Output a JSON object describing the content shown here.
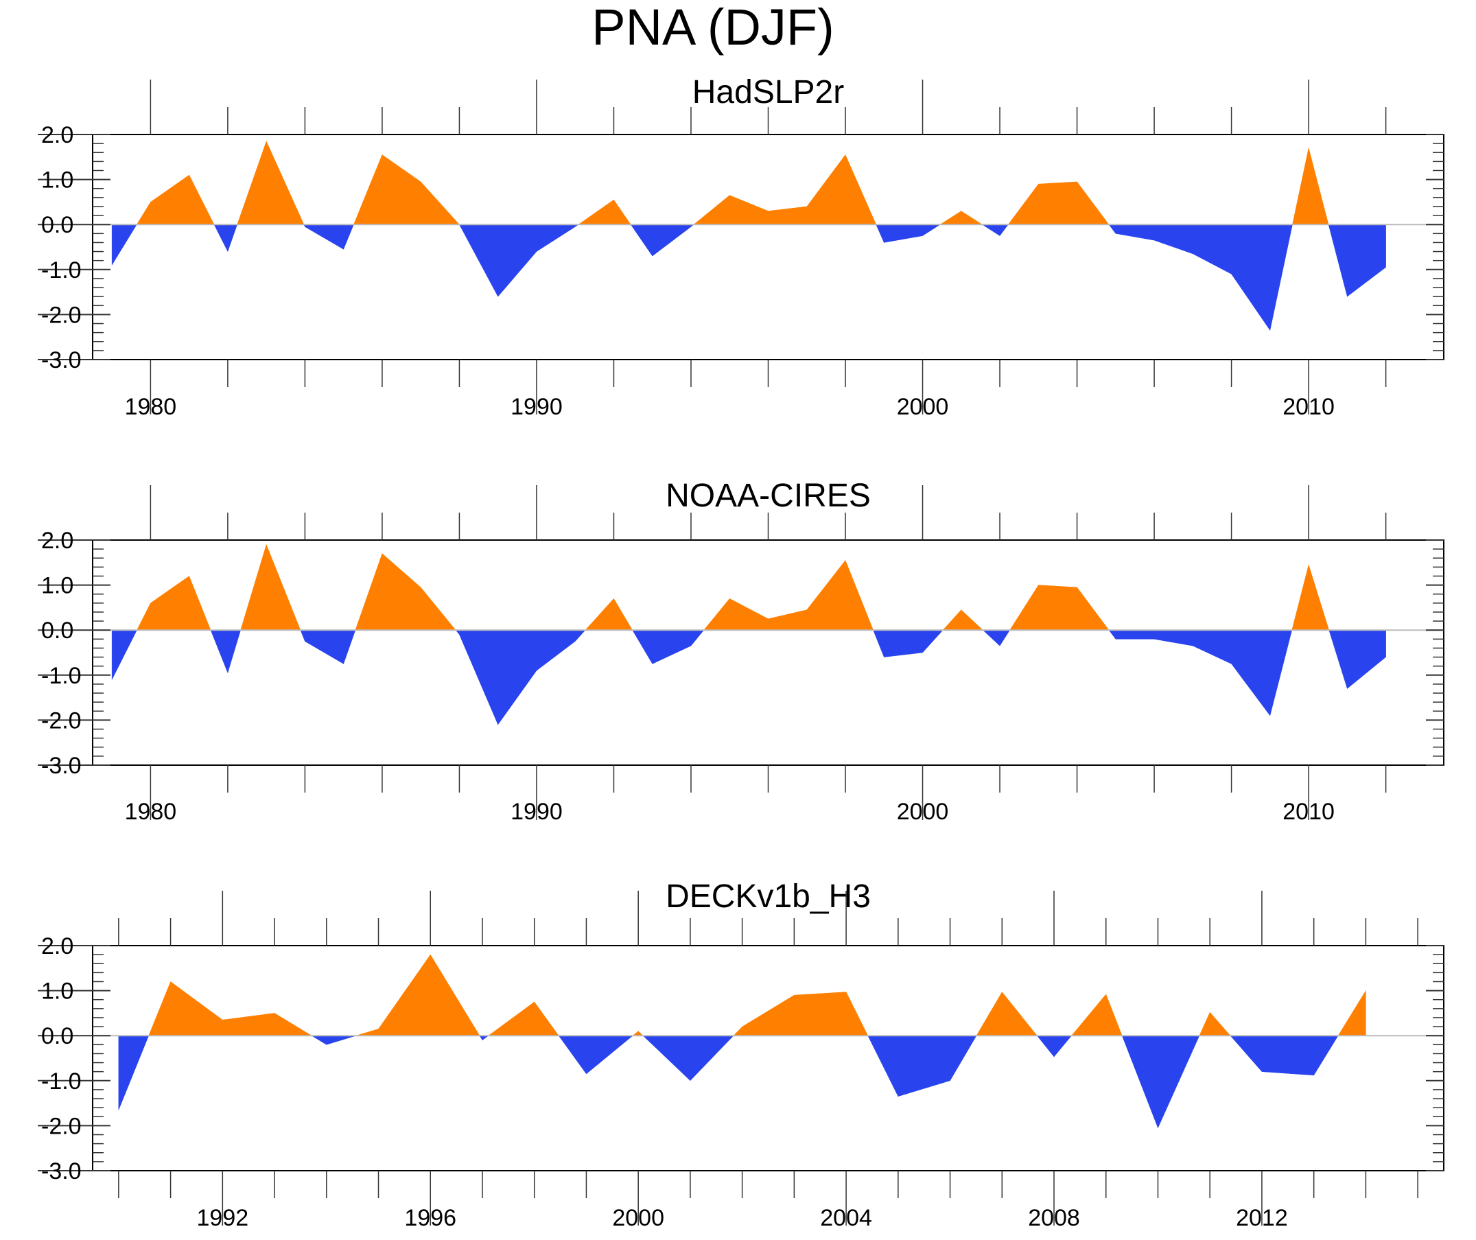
{
  "title": "PNA (DJF)",
  "colors": {
    "positive": "#ff8000",
    "negative": "#2944ee",
    "zero_line": "#bbbbbb",
    "axis": "#000000"
  },
  "chart_data": [
    {
      "type": "area",
      "title": "HadSLP2r",
      "xlim": [
        1978.5,
        2013.5
      ],
      "ylim": [
        -3.0,
        2.0
      ],
      "yticks": [
        "2.0",
        "1.0",
        "0.0",
        "-1.0",
        "-2.0",
        "-3.0"
      ],
      "xticks": [
        1980,
        1990,
        2000,
        2010
      ],
      "xtick_labels": [
        "1980",
        "1990",
        "2000",
        "2010"
      ],
      "x": [
        1979,
        1980,
        1981,
        1982,
        1983,
        1984,
        1985,
        1986,
        1987,
        1988,
        1989,
        1990,
        1991,
        1992,
        1993,
        1994,
        1995,
        1996,
        1997,
        1998,
        1999,
        2000,
        2001,
        2002,
        2003,
        2004,
        2005,
        2006,
        2007,
        2008,
        2009,
        2010,
        2011,
        2012
      ],
      "values": [
        -0.9,
        0.5,
        1.1,
        -0.6,
        1.85,
        -0.05,
        -0.55,
        1.55,
        0.95,
        0.0,
        -1.6,
        -0.6,
        -0.05,
        0.55,
        -0.7,
        -0.05,
        0.65,
        0.3,
        0.4,
        1.55,
        -0.4,
        -0.25,
        0.3,
        -0.25,
        0.9,
        0.95,
        -0.2,
        -0.35,
        -0.65,
        -1.1,
        -2.35,
        1.7,
        -1.6,
        -0.95
      ]
    },
    {
      "type": "area",
      "title": "NOAA-CIRES",
      "xlim": [
        1978.5,
        2013.5
      ],
      "ylim": [
        -3.0,
        2.0
      ],
      "yticks": [
        "2.0",
        "1.0",
        "0.0",
        "-1.0",
        "-2.0",
        "-3.0"
      ],
      "xticks": [
        1980,
        1990,
        2000,
        2010
      ],
      "xtick_labels": [
        "1980",
        "1990",
        "2000",
        "2010"
      ],
      "x": [
        1979,
        1980,
        1981,
        1982,
        1983,
        1984,
        1985,
        1986,
        1987,
        1988,
        1989,
        1990,
        1991,
        1992,
        1993,
        1994,
        1995,
        1996,
        1997,
        1998,
        1999,
        2000,
        2001,
        2002,
        2003,
        2004,
        2005,
        2006,
        2007,
        2008,
        2009,
        2010,
        2011,
        2012
      ],
      "values": [
        -1.1,
        0.6,
        1.2,
        -0.95,
        1.9,
        -0.25,
        -0.75,
        1.7,
        0.95,
        -0.1,
        -2.1,
        -0.9,
        -0.25,
        0.7,
        -0.75,
        -0.35,
        0.7,
        0.25,
        0.45,
        1.55,
        -0.6,
        -0.5,
        0.45,
        -0.35,
        1.0,
        0.95,
        -0.2,
        -0.2,
        -0.35,
        -0.75,
        -1.9,
        1.45,
        -1.3,
        -0.6
      ]
    },
    {
      "type": "area",
      "title": "DECKv1b_H3",
      "xlim": [
        1989.5,
        2015.5
      ],
      "ylim": [
        -3.0,
        2.0
      ],
      "yticks": [
        "2.0",
        "1.0",
        "0.0",
        "-1.0",
        "-2.0",
        "-3.0"
      ],
      "xticks": [
        1992,
        1996,
        2000,
        2004,
        2008,
        2012
      ],
      "xtick_labels": [
        "1992",
        "1996",
        "2000",
        "2004",
        "2008",
        "2012"
      ],
      "x": [
        1990,
        1991,
        1992,
        1993,
        1994,
        1995,
        1996,
        1997,
        1998,
        1999,
        2000,
        2001,
        2002,
        2003,
        2004,
        2005,
        2006,
        2007,
        2008,
        2009,
        2010,
        2011,
        2012,
        2013,
        2014
      ],
      "values": [
        -1.65,
        1.2,
        0.35,
        0.5,
        -0.2,
        0.15,
        1.8,
        -0.1,
        0.75,
        -0.85,
        0.1,
        -1.0,
        0.2,
        0.9,
        0.97,
        -1.35,
        -1.0,
        0.97,
        -0.47,
        0.92,
        -2.05,
        0.52,
        -0.8,
        -0.88,
        1.0
      ]
    }
  ]
}
